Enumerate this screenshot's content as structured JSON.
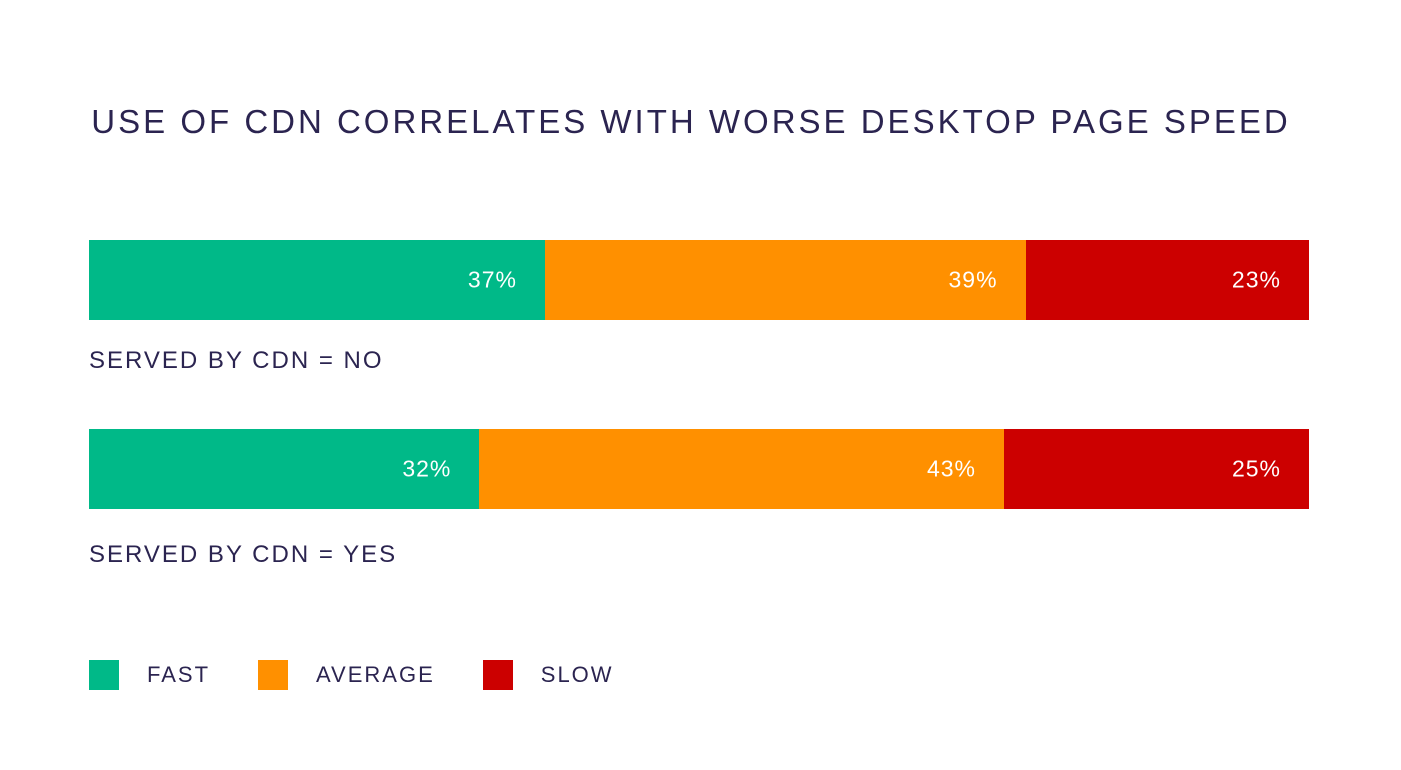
{
  "chart_data": {
    "type": "bar",
    "orientation": "horizontal",
    "stacked": true,
    "title": "USE OF CDN CORRELATES WITH WORSE DESKTOP PAGE SPEED",
    "categories": [
      "SERVED BY CDN = NO",
      "SERVED BY CDN = YES"
    ],
    "series": [
      {
        "name": "FAST",
        "color": "#00b988",
        "values": [
          37,
          32
        ],
        "labels": [
          "37%",
          "32%"
        ]
      },
      {
        "name": "AVERAGE",
        "color": "#ff9000",
        "values": [
          39,
          43
        ],
        "labels": [
          "39%",
          "43%"
        ]
      },
      {
        "name": "SLOW",
        "color": "#cc0000",
        "values": [
          23,
          25
        ],
        "labels": [
          "23%",
          "25%"
        ]
      }
    ],
    "legend_position": "bottom-left"
  }
}
